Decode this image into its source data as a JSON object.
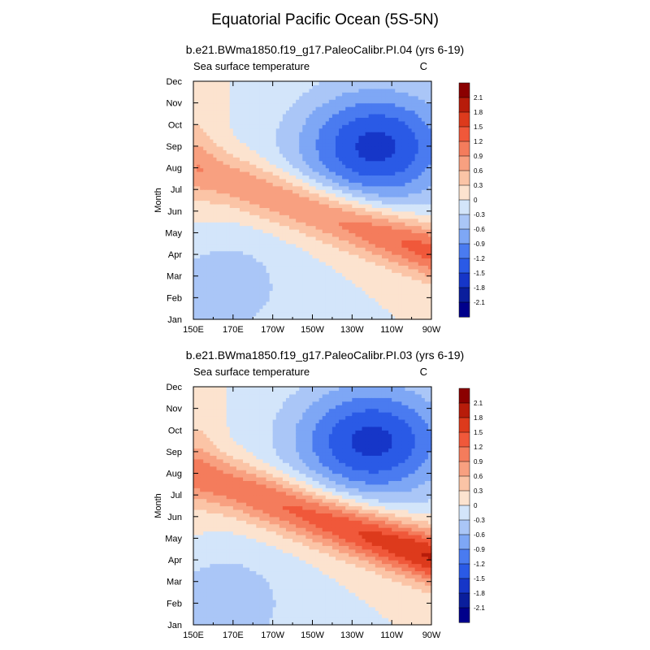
{
  "main_title": "Equatorial Pacific Ocean (5S-5N)",
  "colors": {
    "levels": [
      "#00008b",
      "#0a1e9c",
      "#1636c8",
      "#2a5ae6",
      "#4a7bf0",
      "#7ea7f5",
      "#aac6f7",
      "#d3e5fa",
      "#fce3cf",
      "#fbc4a6",
      "#f8a080",
      "#f47c5c",
      "#f0583a",
      "#dd3a1c",
      "#b71c0a",
      "#8b0000"
    ]
  },
  "chart_data": [
    {
      "type": "contour",
      "title": "b.e21.BWma1850.f19_g17.PaleoCalibr.PI.04 (yrs 6-19)",
      "left_label": "Sea surface temperature",
      "right_label": "C",
      "ylabel": "Month",
      "x_ticks": [
        "150E",
        "170E",
        "170W",
        "150W",
        "130W",
        "110W",
        "90W"
      ],
      "x_tick_lon": [
        150,
        170,
        190,
        210,
        230,
        250,
        270
      ],
      "xlim": [
        150,
        270
      ],
      "y_ticks": [
        "Jan",
        "Feb",
        "Mar",
        "Apr",
        "May",
        "Jun",
        "Jul",
        "Aug",
        "Sep",
        "Oct",
        "Nov",
        "Dec"
      ],
      "ylim": [
        1,
        12
      ],
      "colorbar_labels": [
        "2.1",
        "1.8",
        "1.5",
        "1.2",
        "0.9",
        "0.6",
        "0.3",
        "0",
        "-0.3",
        "-0.6",
        "-0.9",
        "-1.2",
        "-1.5",
        "-1.8",
        "-2.1"
      ],
      "contour_levels": [
        -2.1,
        -1.8,
        -1.5,
        -1.2,
        -0.9,
        -0.6,
        -0.3,
        0,
        0.3,
        0.6,
        0.9,
        1.2,
        1.5,
        1.8,
        2.1
      ],
      "field_model": {
        "warm_peak": {
          "lon": 265,
          "month": 4.0,
          "value": 1.4
        },
        "cold_peak": {
          "lon": 242,
          "month": 9.0,
          "value": -1.6
        },
        "west_cold_spring": {
          "lon": 165,
          "month": 2.5,
          "value": -0.55
        },
        "warm_band_propagates_west": true
      }
    },
    {
      "type": "contour",
      "title": "b.e21.BWma1850.f19_g17.PaleoCalibr.PI.03 (yrs 6-19)",
      "left_label": "Sea surface temperature",
      "right_label": "C",
      "ylabel": "Month",
      "x_ticks": [
        "150E",
        "170E",
        "170W",
        "150W",
        "130W",
        "110W",
        "90W"
      ],
      "x_tick_lon": [
        150,
        170,
        190,
        210,
        230,
        250,
        270
      ],
      "xlim": [
        150,
        270
      ],
      "y_ticks": [
        "Jan",
        "Feb",
        "Mar",
        "Apr",
        "May",
        "Jun",
        "Jul",
        "Aug",
        "Sep",
        "Oct",
        "Nov",
        "Dec"
      ],
      "ylim": [
        1,
        12
      ],
      "colorbar_labels": [
        "2.1",
        "1.8",
        "1.5",
        "1.2",
        "0.9",
        "0.6",
        "0.3",
        "0",
        "-0.3",
        "-0.6",
        "-0.9",
        "-1.2",
        "-1.5",
        "-1.8",
        "-2.1"
      ],
      "contour_levels": [
        -2.1,
        -1.8,
        -1.5,
        -1.2,
        -0.9,
        -0.6,
        -0.3,
        0,
        0.3,
        0.6,
        0.9,
        1.2,
        1.5,
        1.8,
        2.1
      ],
      "field_model": {
        "warm_peak": {
          "lon": 265,
          "month": 4.0,
          "value": 1.9
        },
        "cold_peak": {
          "lon": 240,
          "month": 9.5,
          "value": -1.6
        },
        "west_cold_spring": {
          "lon": 165,
          "month": 2.0,
          "value": -0.6
        },
        "warm_band_propagates_west": true
      }
    }
  ]
}
